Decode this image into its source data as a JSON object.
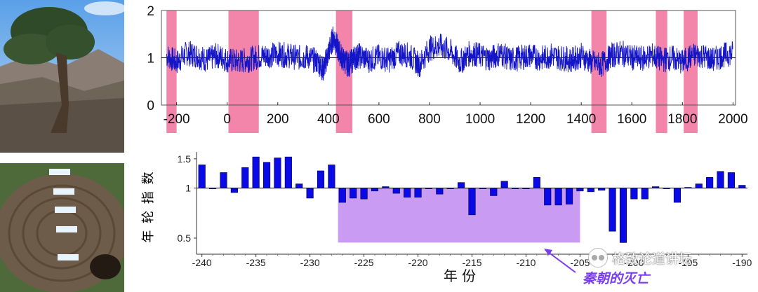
{
  "chart_data": [
    {
      "type": "line",
      "xlim": [
        -260,
        2010
      ],
      "ylim": [
        0,
        2
      ],
      "x_ticks": [
        -200,
        0,
        200,
        400,
        600,
        800,
        1000,
        1200,
        1400,
        1600,
        1800,
        2000
      ],
      "y_ticks": [
        0,
        1,
        2
      ],
      "x_tick_labels": [
        "-200",
        "0",
        "200",
        "400",
        "600",
        "800",
        "1000",
        "1200",
        "1400",
        "1600",
        "1800",
        "2000"
      ],
      "y_tick_labels": [
        "0",
        "1",
        "2"
      ],
      "reference_line": 1,
      "line_color": "#1515c8",
      "band_color": "#f0709a",
      "highlight_bands": [
        {
          "x0": -240,
          "x1": -200
        },
        {
          "x0": 5,
          "x1": 125
        },
        {
          "x0": 430,
          "x1": 495
        },
        {
          "x0": 1440,
          "x1": 1500
        },
        {
          "x0": 1695,
          "x1": 1740
        },
        {
          "x0": 1805,
          "x1": 1860
        }
      ],
      "series": [
        {
          "x": [
            -240,
            -200,
            -160,
            -120,
            -80,
            -40,
            0,
            40,
            80,
            120,
            160,
            200,
            240,
            280,
            320,
            360,
            380,
            400,
            420,
            440,
            460,
            480,
            500,
            520,
            560,
            600,
            640,
            680,
            720,
            760,
            800,
            840,
            880,
            920,
            960,
            1000,
            1040,
            1080,
            1120,
            1160,
            1200,
            1240,
            1280,
            1320,
            1360,
            1400,
            1440,
            1480,
            1520,
            1560,
            1600,
            1640,
            1680,
            1720,
            1760,
            1800,
            1840,
            1880,
            1920,
            1960,
            2000
          ],
          "y": [
            1.05,
            0.9,
            1.1,
            1.05,
            0.95,
            1.05,
            0.95,
            0.92,
            0.95,
            1.02,
            1.05,
            1.08,
            1.05,
            1.0,
            1.02,
            0.9,
            0.75,
            1.1,
            1.45,
            1.15,
            0.95,
            0.85,
            0.98,
            1.05,
            0.95,
            1.02,
            0.95,
            1.1,
            1.05,
            0.85,
            1.2,
            1.25,
            1.15,
            0.9,
            1.1,
            1.05,
            0.98,
            1.1,
            0.95,
            1.0,
            1.05,
            0.98,
            1.05,
            1.0,
            0.95,
            1.05,
            0.9,
            0.85,
            1.05,
            1.1,
            1.0,
            0.98,
            1.05,
            0.95,
            1.0,
            0.9,
            1.05,
            1.05,
            0.95,
            1.05,
            1.1
          ]
        }
      ]
    },
    {
      "type": "bar",
      "xlim": [
        -240.5,
        -189.5
      ],
      "ylim": [
        0.4,
        1.65
      ],
      "scale": "log",
      "baseline": 1,
      "ylabel": "年 轮 指 数",
      "xlabel": "年   份",
      "x_ticks": [
        -240,
        -235,
        -230,
        -225,
        -220,
        -215,
        -210,
        -205,
        -200,
        -195,
        -190
      ],
      "x_tick_labels": [
        "-240",
        "-235",
        "-230",
        "-225",
        "-220",
        "-215",
        "-210",
        "-205",
        "-200",
        "-195",
        "-190"
      ],
      "y_ticks": [
        0.5,
        1,
        1.5
      ],
      "y_tick_labels": [
        "0.5",
        "1",
        "1.5"
      ],
      "bar_color": "#0a0ae6",
      "shaded_region": {
        "x0": -227.4,
        "x1": -205,
        "y0": 0.47,
        "y1": 1,
        "color": "#c08af0"
      },
      "annotation": {
        "text": "秦朝的灭亡",
        "color": "#7a3cf0"
      },
      "years": [
        -240,
        -239,
        -238,
        -237,
        -236,
        -235,
        -234,
        -233,
        -232,
        -231,
        -230,
        -229,
        -228,
        -227,
        -226,
        -225,
        -224,
        -223,
        -222,
        -221,
        -220,
        -219,
        -218,
        -217,
        -216,
        -215,
        -214,
        -213,
        -212,
        -211,
        -210,
        -209,
        -208,
        -207,
        -206,
        -205,
        -204,
        -203,
        -202,
        -201,
        -200,
        -199,
        -198,
        -197,
        -196,
        -195,
        -194,
        -193,
        -192,
        -191,
        -190
      ],
      "values": [
        1.38,
        1.0,
        1.24,
        0.94,
        1.33,
        1.54,
        1.43,
        1.52,
        1.54,
        1.06,
        0.87,
        1.27,
        1.38,
        0.82,
        0.87,
        0.86,
        0.96,
        1.02,
        0.93,
        0.88,
        0.88,
        1.0,
        0.92,
        1.0,
        1.08,
        0.69,
        1.0,
        0.9,
        1.1,
        1.0,
        0.99,
        1.16,
        0.79,
        0.79,
        0.8,
        0.96,
        0.95,
        0.97,
        0.55,
        0.47,
        0.86,
        0.86,
        1.02,
        1.0,
        0.82,
        1.01,
        1.06,
        1.16,
        1.26,
        1.24,
        1.04
      ]
    }
  ],
  "watermark": {
    "text": "格致论道讲坛"
  }
}
